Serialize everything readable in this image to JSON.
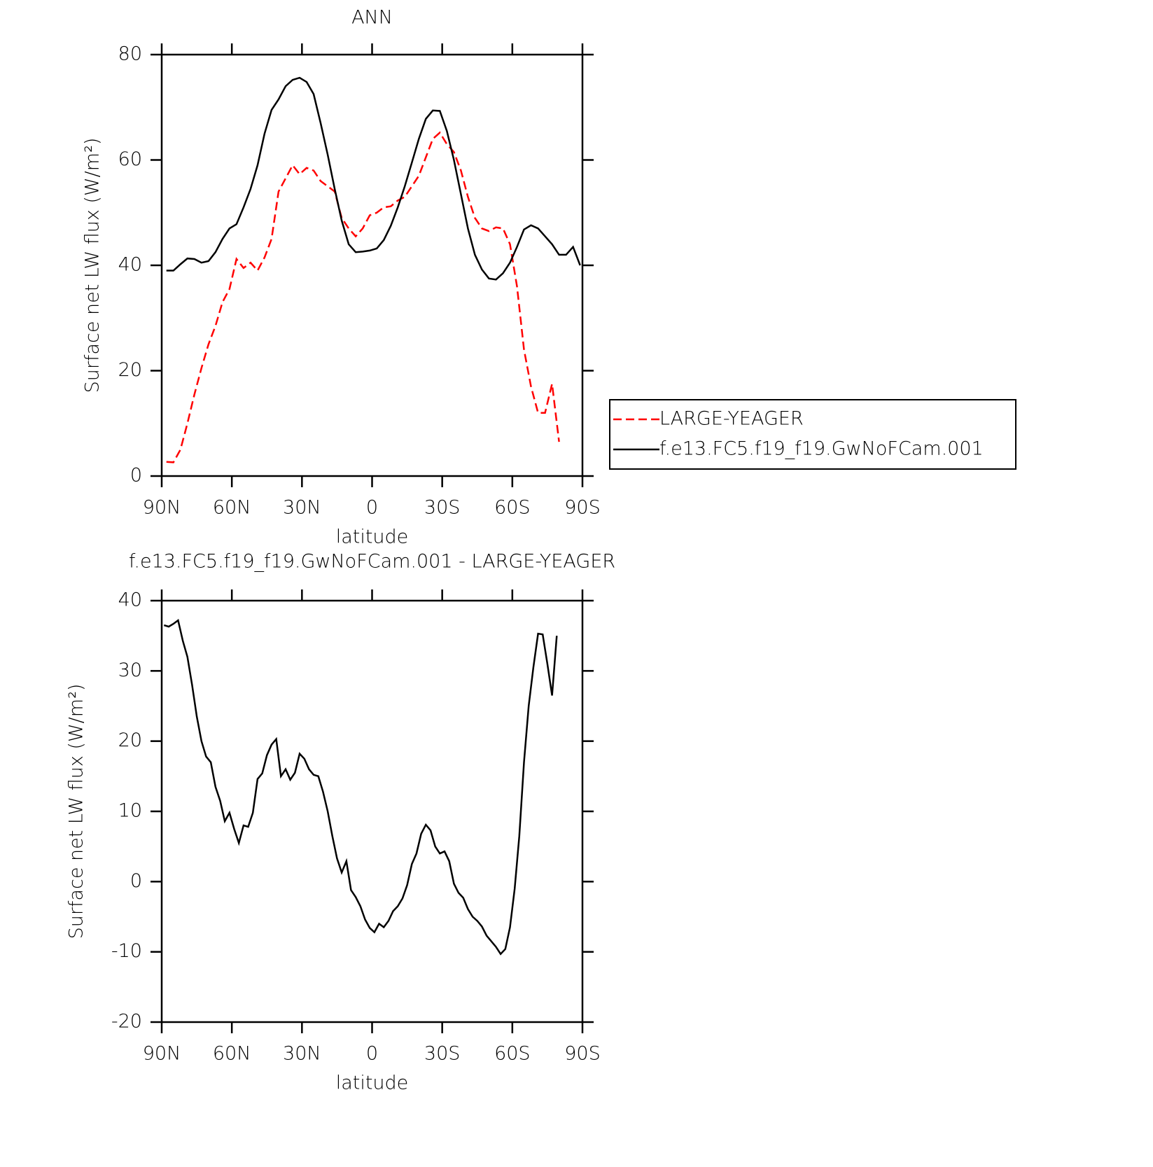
{
  "chart_data": [
    {
      "type": "line",
      "title": "ANN",
      "ylabel": "Surface net LW flux (W/m²)",
      "xlabel": "latitude",
      "xlim": [
        90,
        -90
      ],
      "xticks": [
        {
          "value": 90,
          "label": "90N"
        },
        {
          "value": 60,
          "label": "60N"
        },
        {
          "value": 30,
          "label": "30N"
        },
        0,
        {
          "value": -30,
          "label": "30S"
        },
        {
          "value": -60,
          "label": "60S"
        },
        {
          "value": -90,
          "label": "90S"
        }
      ],
      "ylim": [
        0,
        80
      ],
      "yticks": [
        0,
        20,
        40,
        60,
        80
      ],
      "legend": "right",
      "x": [
        88,
        85,
        82,
        79,
        76,
        73,
        70,
        67,
        64,
        61,
        58,
        55,
        52,
        49,
        46,
        43,
        40,
        37,
        34,
        31,
        28,
        25,
        22,
        19,
        16,
        13,
        10,
        7,
        4,
        1,
        -2,
        -5,
        -8,
        -11,
        -14,
        -17,
        -20,
        -23,
        -26,
        -29,
        -32,
        -35,
        -38,
        -41,
        -44,
        -47,
        -50,
        -53,
        -56,
        -59,
        -62,
        -65,
        -68,
        -71,
        -74,
        -77,
        -80,
        -83,
        -86,
        -89
      ],
      "series": [
        {
          "name": "LARGE-YEAGER",
          "color": "#ff0000",
          "dash": true,
          "values": [
            2.7,
            2.6,
            5,
            10,
            15.5,
            20.5,
            25,
            28.5,
            33,
            35.5,
            41.2,
            39.5,
            40.5,
            39,
            41.5,
            45,
            54,
            56.5,
            59,
            57.3,
            58.5,
            58,
            56,
            55,
            54,
            49,
            47,
            45.5,
            47,
            49.5,
            50,
            51,
            51.2,
            52.3,
            53,
            55,
            57,
            60.5,
            64,
            65.2,
            63,
            61.5,
            58,
            53,
            49,
            47,
            46.5,
            47.2,
            47,
            44,
            36,
            24,
            17,
            12,
            12,
            17.5,
            6.5,
            null,
            null,
            null
          ]
        },
        {
          "name": "f.e13.FC5.f19_f19.GwNoFCam.001",
          "color": "#000000",
          "dash": false,
          "values": [
            39,
            39,
            40.2,
            41.3,
            41.2,
            40.5,
            40.8,
            42.5,
            45,
            47,
            47.8,
            51,
            54.5,
            59,
            65,
            69.5,
            71.5,
            74,
            75.2,
            75.6,
            74.8,
            72.5,
            67,
            61,
            54.5,
            48.5,
            44,
            42.5,
            42.6,
            42.8,
            43.2,
            44.8,
            47.5,
            51,
            55,
            59.5,
            64,
            67.8,
            69.4,
            69.3,
            65.5,
            60,
            53.5,
            47,
            42,
            39.2,
            37.5,
            37.3,
            38.5,
            40.5,
            43.5,
            46.8,
            47.6,
            47,
            45.5,
            44,
            42,
            42,
            43.5,
            40
          ]
        }
      ]
    },
    {
      "type": "line",
      "title": "f.e13.FC5.f19_f19.GwNoFCam.001 - LARGE-YEAGER",
      "ylabel": "Surface net LW flux (W/m²)",
      "xlabel": "latitude",
      "xlim": [
        90,
        -90
      ],
      "xticks": [
        {
          "value": 90,
          "label": "90N"
        },
        {
          "value": 60,
          "label": "60N"
        },
        {
          "value": 30,
          "label": "30N"
        },
        0,
        {
          "value": -30,
          "label": "30S"
        },
        {
          "value": -60,
          "label": "60S"
        },
        {
          "value": -90,
          "label": "90S"
        }
      ],
      "ylim": [
        -20,
        40
      ],
      "yticks": [
        -20,
        -10,
        0,
        10,
        20,
        30,
        40
      ],
      "x": [
        89,
        87,
        85,
        83,
        81,
        79,
        77,
        75,
        73,
        71,
        69,
        67,
        65,
        63,
        61,
        59,
        57,
        55,
        53,
        51,
        49,
        47,
        45,
        43,
        41,
        39,
        37,
        35,
        33,
        31,
        29,
        27,
        25,
        23,
        21,
        19,
        17,
        15,
        13,
        11,
        9,
        7,
        5,
        3,
        1,
        -1,
        -3,
        -5,
        -7,
        -9,
        -11,
        -13,
        -15,
        -17,
        -19,
        -21,
        -23,
        -25,
        -27,
        -29,
        -31,
        -33,
        -35,
        -37,
        -39,
        -41,
        -43,
        -45,
        -47,
        -49,
        -51,
        -53,
        -55,
        -57,
        -59,
        -61,
        -63,
        -65,
        -67,
        -69,
        -71,
        -73,
        -75,
        -77,
        -79
      ],
      "series": [
        {
          "color": "#000000",
          "dash": false,
          "values": [
            36.5,
            36.3,
            36.7,
            37.2,
            34.3,
            32,
            28,
            23.5,
            20,
            17.8,
            17,
            13.5,
            11.5,
            8.6,
            9.8,
            7.5,
            5.5,
            8,
            7.8,
            9.8,
            14.6,
            15.4,
            18,
            19.5,
            20.3,
            15,
            16,
            14.5,
            15.5,
            18.2,
            17.5,
            16,
            15.2,
            15,
            12.8,
            10,
            6.5,
            3.3,
            1.3,
            2.9,
            -1.2,
            -2.2,
            -3.5,
            -5.4,
            -6.6,
            -7.2,
            -6,
            -6.5,
            -5.6,
            -4.2,
            -3.5,
            -2.4,
            -0.5,
            2.5,
            4,
            6.8,
            8.1,
            7.3,
            5,
            4,
            4.3,
            2.9,
            -0.3,
            -1.6,
            -2.3,
            -3.9,
            -5,
            -5.6,
            -6.4,
            -7.7,
            -8.5,
            -9.3,
            -10.3,
            -9.6,
            -6.5,
            -1,
            6.5,
            17,
            25,
            30.5,
            35.3,
            35.2,
            31,
            26.5,
            35
          ]
        }
      ]
    }
  ]
}
